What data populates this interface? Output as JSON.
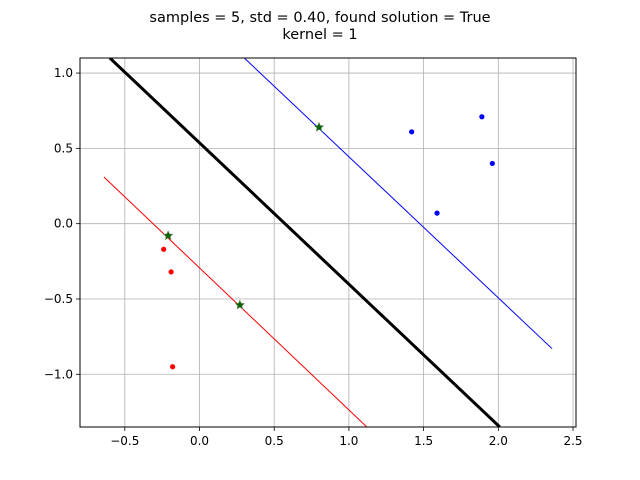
{
  "chart_data": {
    "type": "scatter",
    "title_lines": [
      "samples = 5, std = 0.40, found solution = True",
      "kernel = 1"
    ],
    "xlabel": "",
    "ylabel": "",
    "xlim": [
      -0.8,
      2.52
    ],
    "ylim": [
      -1.35,
      1.1
    ],
    "xticks": [
      -0.5,
      0.0,
      0.5,
      1.0,
      1.5,
      2.0,
      2.5
    ],
    "xtick_labels": [
      "−0.5",
      "0.0",
      "0.5",
      "1.0",
      "1.5",
      "2.0",
      "2.5"
    ],
    "yticks": [
      -1.0,
      -0.5,
      0.0,
      0.5,
      1.0
    ],
    "ytick_labels": [
      "−1.0",
      "−0.5",
      "0.0",
      "0.5",
      "1.0"
    ],
    "grid": true,
    "series": [
      {
        "kind": "scatter",
        "color": "#0000ff",
        "points": [
          [
            0.8,
            0.64
          ],
          [
            1.42,
            0.61
          ],
          [
            1.89,
            0.71
          ],
          [
            1.96,
            0.4
          ],
          [
            1.59,
            0.07
          ]
        ]
      },
      {
        "kind": "scatter",
        "color": "#ff0000",
        "points": [
          [
            -0.21,
            -0.08
          ],
          [
            -0.24,
            -0.17
          ],
          [
            -0.19,
            -0.32
          ],
          [
            0.27,
            -0.54
          ],
          [
            -0.18,
            -0.95
          ]
        ]
      },
      {
        "kind": "support-vectors",
        "color": "#006400",
        "points": [
          [
            0.8,
            0.64
          ],
          [
            -0.21,
            -0.08
          ],
          [
            0.27,
            -0.54
          ]
        ]
      }
    ],
    "lines": [
      {
        "kind": "decision-boundary",
        "color": "#000000",
        "points": [
          [
            -0.6,
            1.1
          ],
          [
            2.01,
            -1.35
          ]
        ]
      },
      {
        "kind": "margin-positive",
        "color": "#0000ff",
        "points": [
          [
            0.3,
            1.1
          ],
          [
            2.36,
            -0.83
          ]
        ]
      },
      {
        "kind": "margin-negative",
        "color": "#ff0000",
        "points": [
          [
            -0.64,
            0.31
          ],
          [
            1.12,
            -1.35
          ]
        ]
      }
    ]
  }
}
